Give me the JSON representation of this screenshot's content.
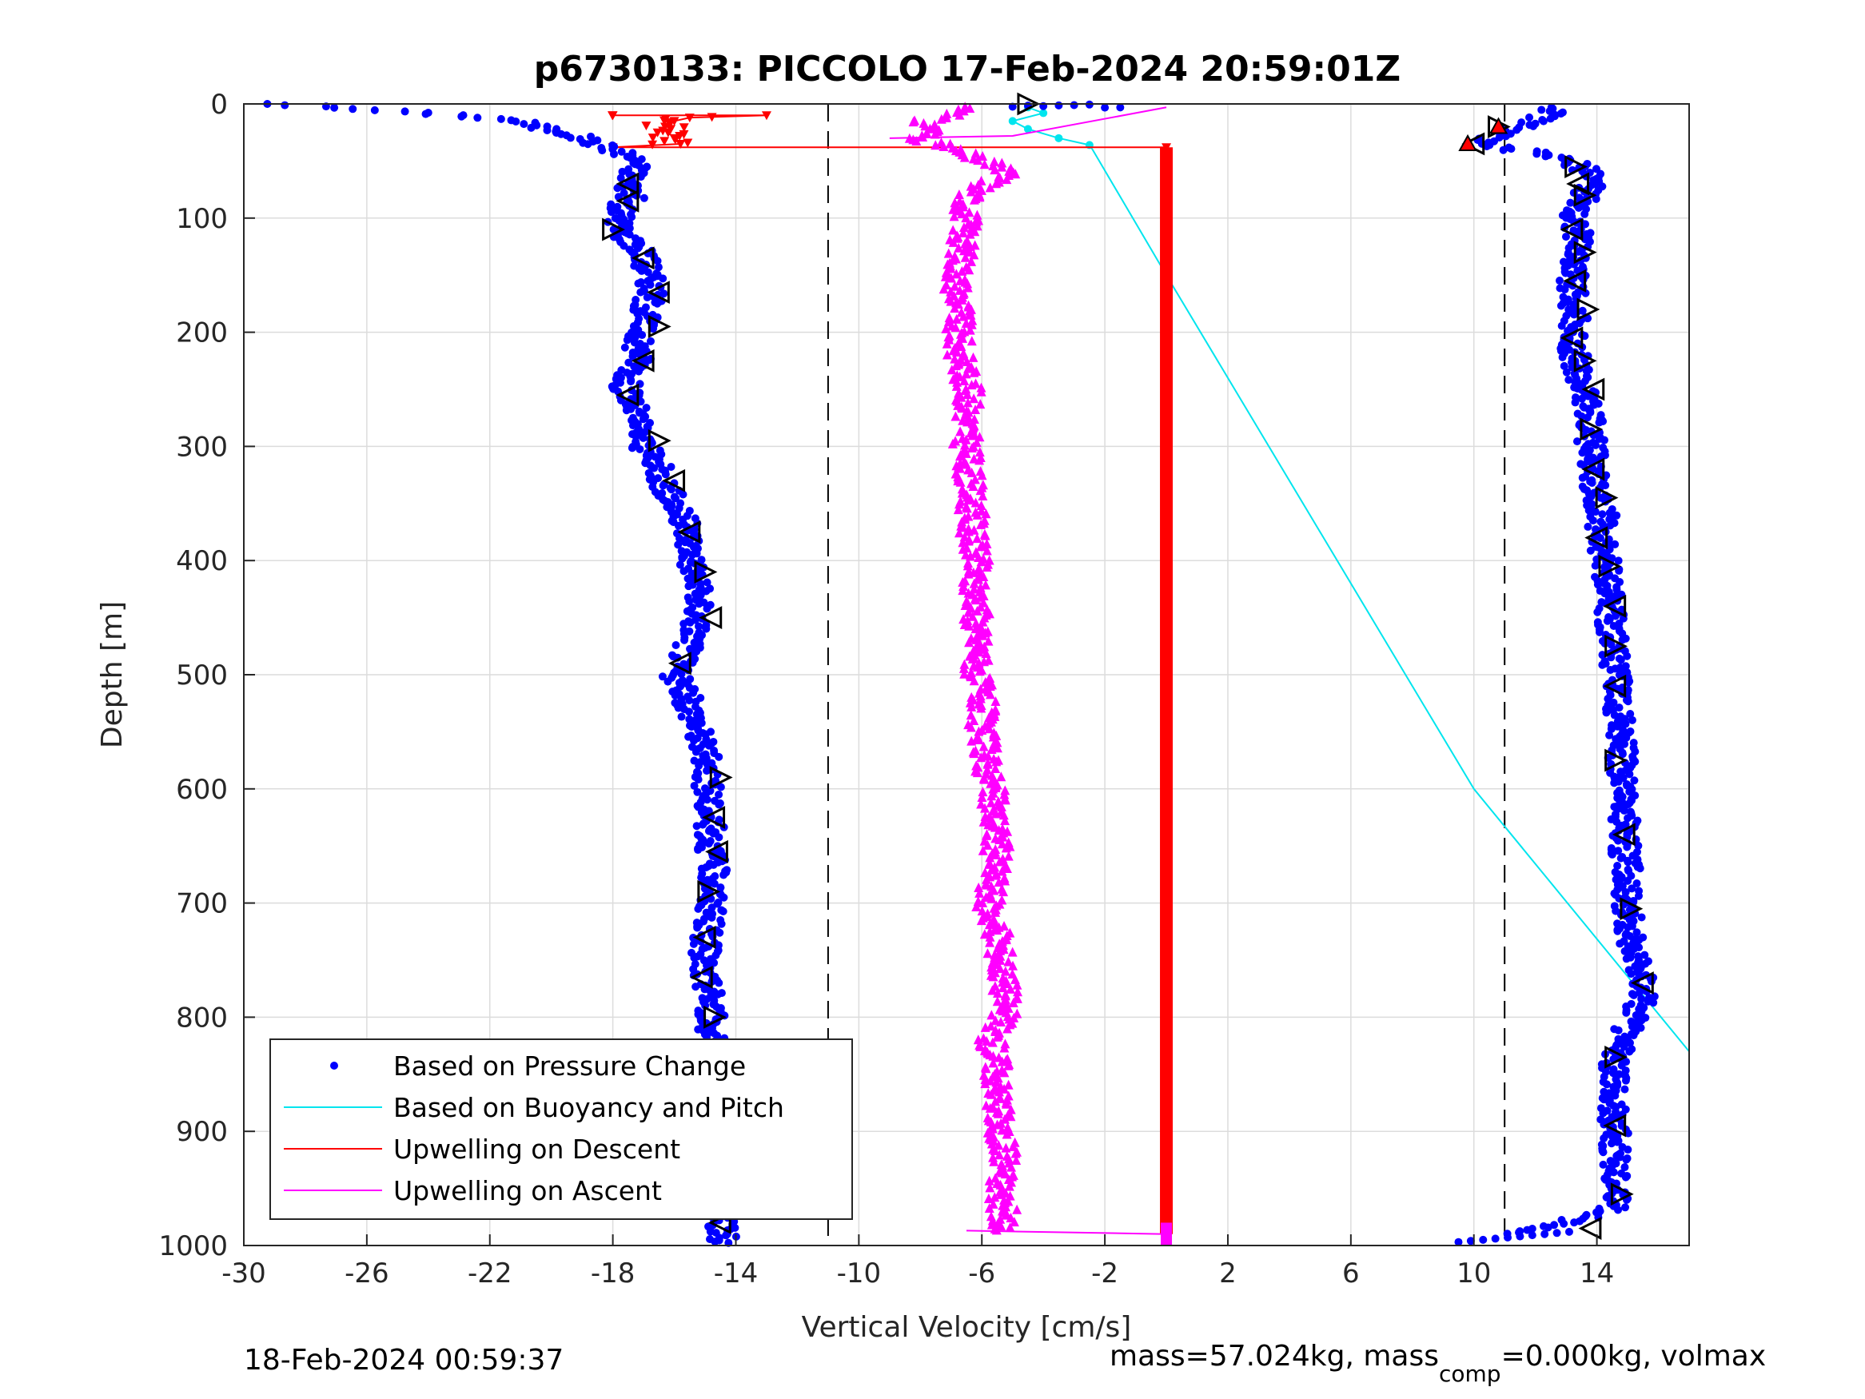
{
  "chart_data": {
    "type": "scatter",
    "title": "p6730133: PICCOLO 17-Feb-2024 20:59:01Z",
    "xlabel": "Vertical Velocity [cm/s]",
    "ylabel": "Depth [m]",
    "xlim": [
      -30,
      17
    ],
    "ylim": [
      0,
      1000
    ],
    "y_reversed": true,
    "grid": true,
    "xticks": [
      -30,
      -26,
      -22,
      -18,
      -14,
      -10,
      -6,
      -2,
      2,
      6,
      10,
      14
    ],
    "xtick_labels": [
      "-30",
      "-26",
      "-22",
      "-18",
      "-14",
      "-10",
      "-6",
      "-2",
      "2",
      "6",
      "10",
      "14"
    ],
    "yticks": [
      0,
      100,
      200,
      300,
      400,
      500,
      600,
      700,
      800,
      900,
      1000
    ],
    "ytick_labels": [
      "0",
      "100",
      "200",
      "300",
      "400",
      "500",
      "600",
      "700",
      "800",
      "900",
      "1000"
    ],
    "legend_position": "bottom-left",
    "reference_lines_x": [
      -11,
      11
    ],
    "colors": {
      "pressure": "#0000ff",
      "buoyancy": "#00e5ee",
      "upwelling_descent": "#ff0000",
      "upwelling_ascent": "#ff00ff",
      "markers": "#000000"
    },
    "series": [
      {
        "name": "Based on Pressure Change",
        "style": "dots",
        "descent": {
          "depth": [
            0,
            5,
            10,
            15,
            20,
            25,
            30,
            35,
            40,
            45,
            50,
            60,
            70,
            80,
            90,
            100,
            110,
            120,
            130,
            140,
            150,
            160,
            170,
            180,
            190,
            200,
            210,
            220,
            230,
            240,
            250,
            260,
            270,
            280,
            290,
            300,
            320,
            340,
            360,
            380,
            400,
            420,
            440,
            460,
            480,
            500,
            520,
            540,
            560,
            580,
            600,
            620,
            640,
            660,
            680,
            700,
            720,
            740,
            760,
            780,
            800,
            820,
            840,
            860,
            880,
            900,
            920,
            940,
            960,
            980,
            995
          ],
          "w": [
            -29,
            -26,
            -23,
            -21,
            -20.5,
            -19.5,
            -19,
            -18.5,
            -18,
            -17.5,
            -17.2,
            -17.3,
            -17.5,
            -17.3,
            -17.8,
            -17.7,
            -17.8,
            -17.4,
            -17,
            -16.9,
            -16.8,
            -16.7,
            -16.8,
            -16.9,
            -17,
            -17.1,
            -17.2,
            -17.1,
            -17.2,
            -17.5,
            -17.6,
            -17.4,
            -17.3,
            -17.2,
            -17.1,
            -17,
            -16.5,
            -16.2,
            -15.8,
            -15.5,
            -15.4,
            -15.3,
            -15.2,
            -15.3,
            -15.6,
            -16,
            -15.6,
            -15.3,
            -15.1,
            -14.9,
            -14.9,
            -14.9,
            -14.8,
            -14.8,
            -14.7,
            -14.8,
            -14.9,
            -15,
            -15.1,
            -14.8,
            -14.8,
            -14.8,
            -14.8,
            -14.9,
            -14.9,
            -15,
            -14.9,
            -14.8,
            -14.6,
            -14.5,
            -14.4
          ]
        },
        "ascent": {
          "depth": [
            995,
            985,
            970,
            950,
            920,
            900,
            880,
            860,
            840,
            820,
            800,
            780,
            770,
            750,
            730,
            700,
            680,
            650,
            620,
            600,
            580,
            550,
            520,
            500,
            480,
            460,
            440,
            420,
            400,
            380,
            360,
            340,
            320,
            300,
            280,
            260,
            240,
            220,
            200,
            180,
            160,
            140,
            120,
            100,
            80,
            65,
            55,
            45,
            35,
            25,
            15,
            8,
            3
          ],
          "w": [
            9.5,
            12,
            14.5,
            14.7,
            14.6,
            14.6,
            14.5,
            14.5,
            14.6,
            14.8,
            15.2,
            15.5,
            15.6,
            15.3,
            15.1,
            15,
            15,
            14.9,
            14.9,
            14.9,
            14.8,
            14.8,
            14.7,
            14.6,
            14.6,
            14.5,
            14.4,
            14.4,
            14.3,
            14.1,
            14.2,
            14,
            13.9,
            13.8,
            13.8,
            13.6,
            13.4,
            13.3,
            13.2,
            13.3,
            13.2,
            13.3,
            13.4,
            13.3,
            13.6,
            14,
            13.5,
            12.5,
            10,
            11,
            12,
            12.5,
            12.7
          ]
        }
      },
      {
        "name": "Based on Buoyancy and Pitch",
        "style": "line",
        "depth": [
          3,
          8,
          15,
          22,
          30,
          36,
          40,
          150,
          600,
          830
        ],
        "w": [
          -4.5,
          -4,
          -5,
          -4.5,
          -3.5,
          -2.5,
          -2.4,
          0,
          10,
          17
        ]
      },
      {
        "name": "Upwelling on Descent",
        "style": "line-triangles-down",
        "depth": [
          10,
          10,
          12,
          15,
          20,
          25,
          30,
          35,
          38,
          38,
          90,
          200,
          400,
          600,
          800,
          990
        ],
        "w": [
          -18,
          -13,
          -15.5,
          -16,
          -16.3,
          -16.2,
          -16,
          -15.8,
          -18,
          0,
          0,
          0,
          0,
          0,
          0,
          0
        ]
      },
      {
        "name": "Upwelling on Ascent",
        "style": "line-triangles-up",
        "depth": [
          990,
          985,
          970,
          950,
          920,
          900,
          880,
          860,
          840,
          820,
          800,
          780,
          760,
          740,
          720,
          700,
          680,
          650,
          620,
          600,
          580,
          550,
          520,
          500,
          480,
          460,
          440,
          420,
          400,
          380,
          360,
          340,
          320,
          300,
          280,
          260,
          240,
          220,
          200,
          180,
          160,
          140,
          120,
          100,
          90,
          80,
          70,
          62,
          55,
          45,
          40,
          30,
          22,
          15,
          8,
          3
        ],
        "w": [
          -6.5,
          -5.4,
          -5.3,
          -5.4,
          -5.2,
          -5.5,
          -5.4,
          -5.5,
          -5.5,
          -5.7,
          -5.3,
          -5.2,
          -5.3,
          -5.4,
          -5.6,
          -5.8,
          -5.6,
          -5.5,
          -5.6,
          -5.7,
          -5.8,
          -6,
          -6,
          -6.2,
          -6.1,
          -6.2,
          -6.1,
          -6.3,
          -6.2,
          -6.3,
          -6.3,
          -6.4,
          -6.4,
          -6.5,
          -6.5,
          -6.4,
          -6.5,
          -6.7,
          -6.8,
          -6.7,
          -6.8,
          -6.7,
          -6.6,
          -6.5,
          -6.5,
          -6.4,
          -5.8,
          -5.2,
          -5.5,
          -6.5,
          -7,
          -8,
          -7.5,
          -8,
          -6.5,
          -6.5
        ]
      }
    ],
    "markers": {
      "name": "sample markers",
      "style": "open-triangles",
      "descent": {
        "depth": [
          0,
          70,
          85,
          110,
          135,
          165,
          195,
          225,
          255,
          295,
          330,
          375,
          410,
          450,
          490,
          590,
          625,
          655,
          690,
          730,
          765,
          800,
          835,
          870,
          905,
          945,
          980
        ],
        "w": [
          -4.5,
          -17.5,
          -17.5,
          -18,
          -17,
          -16.5,
          -16.5,
          -17,
          -17.5,
          -16.5,
          -16,
          -15.5,
          -15,
          -14.8,
          -15.8,
          -14.5,
          -14.7,
          -14.6,
          -14.9,
          -15,
          -15.1,
          -14.7,
          -14.7,
          -15,
          -15,
          -14.5,
          -14.5
        ]
      },
      "ascent": {
        "depth": [
          985,
          955,
          895,
          835,
          770,
          705,
          640,
          575,
          510,
          475,
          440,
          405,
          380,
          345,
          320,
          285,
          250,
          225,
          205,
          180,
          155,
          130,
          110,
          80,
          70,
          55,
          35,
          20
        ],
        "w": [
          13.8,
          14.8,
          14.6,
          14.6,
          15.5,
          15.1,
          14.9,
          14.6,
          14.6,
          14.6,
          14.6,
          14.4,
          14,
          14.3,
          13.9,
          13.8,
          13.9,
          13.6,
          13.2,
          13.7,
          13.3,
          13.6,
          13.2,
          13.6,
          13.4,
          13.3,
          10,
          10.8
        ]
      }
    },
    "red_filled_markers": {
      "depth": [
        20,
        35
      ],
      "w": [
        10.8,
        9.8
      ]
    }
  },
  "footer": {
    "timestamp": "18-Feb-2024 00:59:37",
    "mass_text": "mass=57.024kg, mass",
    "mass_subscript": "comp",
    "mass_tail": "=0.000kg, volmax"
  }
}
